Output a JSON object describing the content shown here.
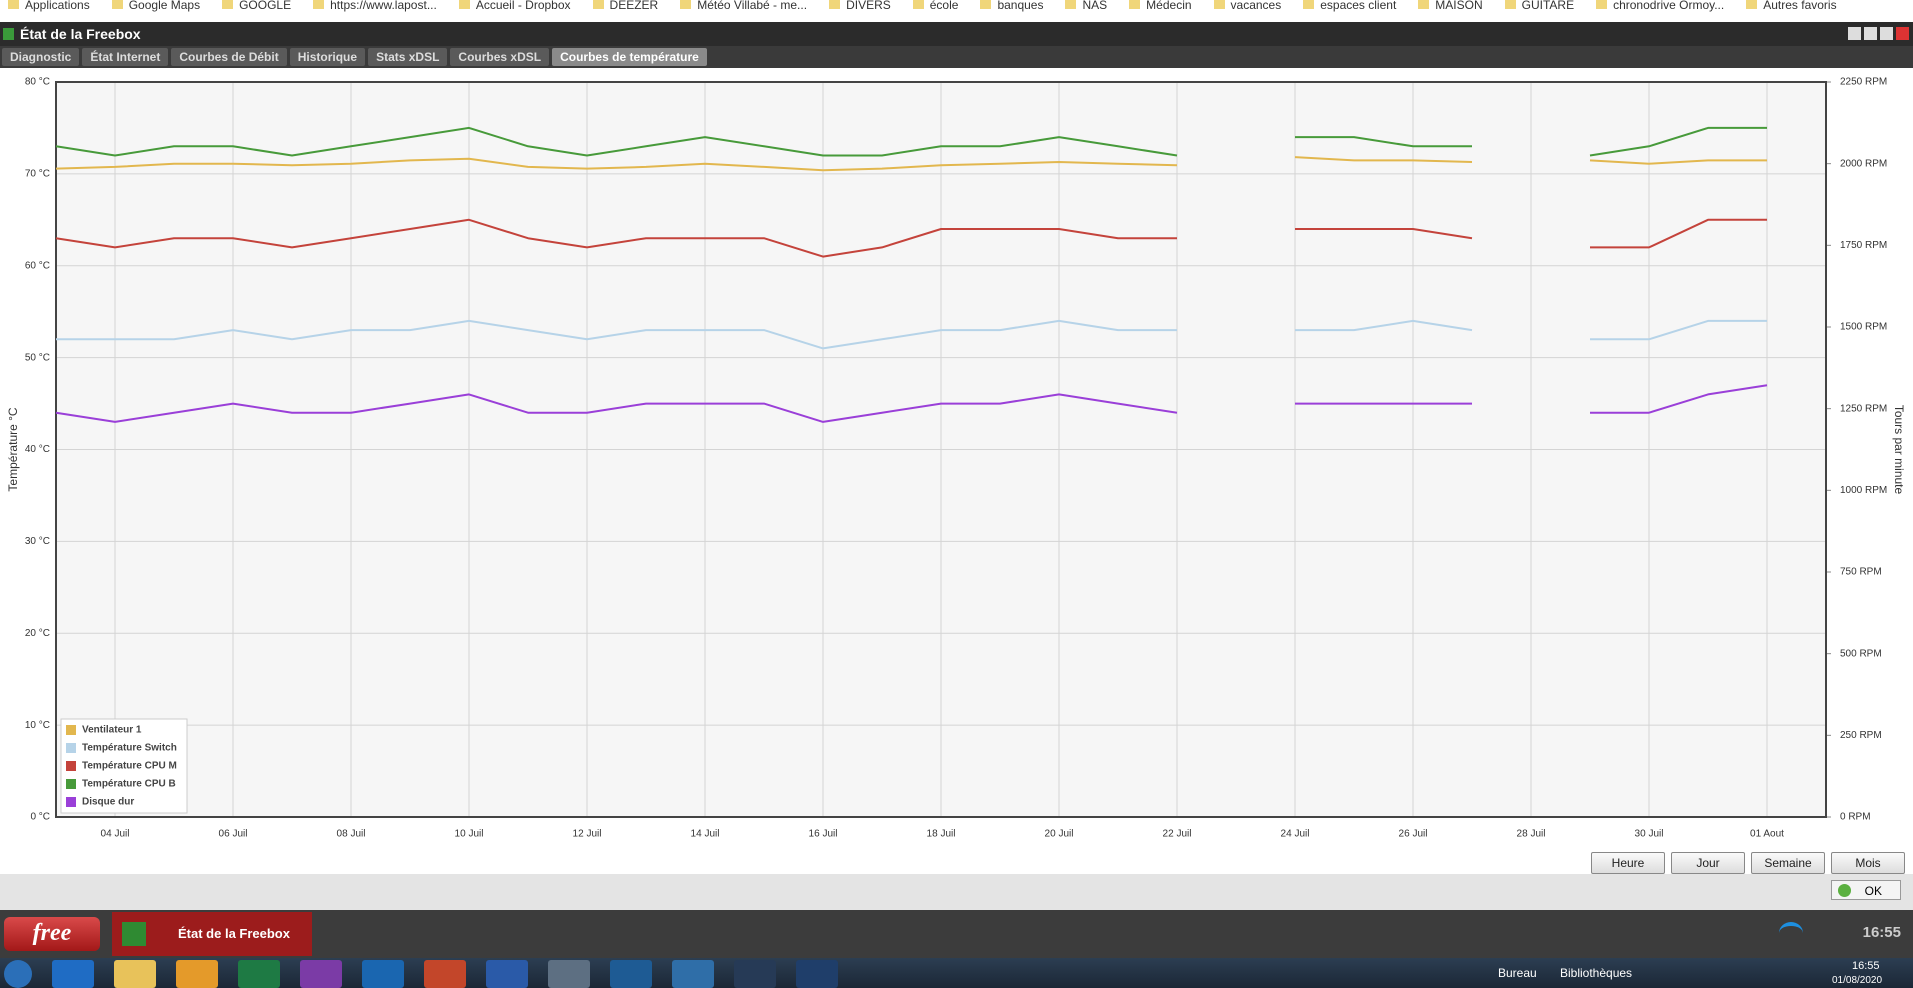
{
  "browser": {
    "bookmarks": [
      "Applications",
      "Google Maps",
      "GOOGLE",
      "https://www.lapost...",
      "Accueil - Dropbox",
      "DEEZER",
      "Météo Villabé - me...",
      "DIVERS",
      "école",
      "banques",
      "NAS",
      "Médecin",
      "vacances",
      "espaces client",
      "MAISON",
      "GUITARE",
      "chronodrive Ormoy...",
      "Autres favoris"
    ]
  },
  "window": {
    "title": "État de la Freebox"
  },
  "tabs": [
    "Diagnostic",
    "État Internet",
    "Courbes de Débit",
    "Historique",
    "Stats xDSL",
    "Courbes xDSL",
    "Courbes de température"
  ],
  "active_tab": "Courbes de température",
  "range_buttons": [
    "Heure",
    "Jour",
    "Semaine",
    "Mois"
  ],
  "ok_button": "OK",
  "app_bar": {
    "logo": "free",
    "task": "État de la Freebox",
    "time": "16:55"
  },
  "taskbar": {
    "desktop": "Bureau",
    "libraries": "Bibliothèques",
    "time": "16:55",
    "date": "01/08/2020"
  },
  "chart_data": {
    "type": "line",
    "ylabel": "Température °C",
    "y2label": "Tours par minute",
    "x": [
      "07-03",
      "07-04",
      "07-05",
      "07-06",
      "07-07",
      "07-08",
      "07-09",
      "07-10",
      "07-11",
      "07-12",
      "07-13",
      "07-14",
      "07-15",
      "07-16",
      "07-17",
      "07-18",
      "07-19",
      "07-20",
      "07-21",
      "07-22",
      "07-23",
      "07-24",
      "07-25",
      "07-26",
      "07-27",
      "07-28",
      "07-29",
      "07-30",
      "07-31",
      "08-01"
    ],
    "xlim": [
      "07-03",
      "08-02"
    ],
    "xticks": [
      {
        "value": "07-04",
        "label": "04 Juil"
      },
      {
        "value": "07-06",
        "label": "06 Juil"
      },
      {
        "value": "07-08",
        "label": "08 Juil"
      },
      {
        "value": "07-10",
        "label": "10 Juil"
      },
      {
        "value": "07-12",
        "label": "12 Juil"
      },
      {
        "value": "07-14",
        "label": "14 Juil"
      },
      {
        "value": "07-16",
        "label": "16 Juil"
      },
      {
        "value": "07-18",
        "label": "18 Juil"
      },
      {
        "value": "07-20",
        "label": "20 Juil"
      },
      {
        "value": "07-22",
        "label": "22 Juil"
      },
      {
        "value": "07-24",
        "label": "24 Juil"
      },
      {
        "value": "07-26",
        "label": "26 Juil"
      },
      {
        "value": "07-28",
        "label": "28 Juil"
      },
      {
        "value": "07-30",
        "label": "30 Juil"
      },
      {
        "value": "08-01",
        "label": "01 Aout"
      }
    ],
    "ylim": [
      0,
      80
    ],
    "yticks": [
      {
        "value": 0,
        "label": "0 °C"
      },
      {
        "value": 10,
        "label": "10 °C"
      },
      {
        "value": 20,
        "label": "20 °C"
      },
      {
        "value": 30,
        "label": "30 °C"
      },
      {
        "value": 40,
        "label": "40 °C"
      },
      {
        "value": 50,
        "label": "50 °C"
      },
      {
        "value": 60,
        "label": "60 °C"
      },
      {
        "value": 70,
        "label": "70 °C"
      },
      {
        "value": 80,
        "label": "80 °C"
      }
    ],
    "y2lim": [
      0,
      2250
    ],
    "y2ticks": [
      {
        "value": 0,
        "label": "0 RPM"
      },
      {
        "value": 250,
        "label": "250 RPM"
      },
      {
        "value": 500,
        "label": "500 RPM"
      },
      {
        "value": 750,
        "label": "750 RPM"
      },
      {
        "value": 1000,
        "label": "1000 RPM"
      },
      {
        "value": 1250,
        "label": "1250 RPM"
      },
      {
        "value": 1500,
        "label": "1500 RPM"
      },
      {
        "value": 1750,
        "label": "1750 RPM"
      },
      {
        "value": 2000,
        "label": "2000 RPM"
      },
      {
        "value": 2250,
        "label": "2250 RPM"
      }
    ],
    "grid": true,
    "legend": "bottom-left",
    "series": [
      {
        "name": "Ventilateur 1",
        "color": "#e2b74e",
        "axis": "y2",
        "values": [
          1985,
          1990,
          2000,
          2000,
          1995,
          2000,
          2010,
          2015,
          1990,
          1985,
          1990,
          2000,
          1990,
          1980,
          1985,
          1995,
          2000,
          2005,
          2000,
          1995,
          null,
          2020,
          2010,
          2010,
          2005,
          null,
          2010,
          2000,
          2010,
          2010
        ]
      },
      {
        "name": "Température Switch",
        "color": "#b6d3e8",
        "values": [
          52,
          52,
          52,
          53,
          52,
          53,
          53,
          54,
          53,
          52,
          53,
          53,
          53,
          51,
          52,
          53,
          53,
          54,
          53,
          53,
          null,
          53,
          53,
          54,
          53,
          null,
          52,
          52,
          54,
          54
        ]
      },
      {
        "name": "Température CPU M",
        "color": "#c4433b",
        "values": [
          63,
          62,
          63,
          63,
          62,
          63,
          64,
          65,
          63,
          62,
          63,
          63,
          63,
          61,
          62,
          64,
          64,
          64,
          63,
          63,
          null,
          64,
          64,
          64,
          63,
          null,
          62,
          62,
          65,
          65
        ]
      },
      {
        "name": "Température CPU B",
        "color": "#479a3a",
        "values": [
          73,
          72,
          73,
          73,
          72,
          73,
          74,
          75,
          73,
          72,
          73,
          74,
          73,
          72,
          72,
          73,
          73,
          74,
          73,
          72,
          null,
          74,
          74,
          73,
          73,
          null,
          72,
          73,
          75,
          75
        ]
      },
      {
        "name": "Disque dur",
        "color": "#9a3fd8",
        "values": [
          44,
          43,
          44,
          45,
          44,
          44,
          45,
          46,
          44,
          44,
          45,
          45,
          45,
          43,
          44,
          45,
          45,
          46,
          45,
          44,
          null,
          45,
          45,
          45,
          45,
          null,
          44,
          44,
          46,
          47
        ]
      }
    ]
  }
}
